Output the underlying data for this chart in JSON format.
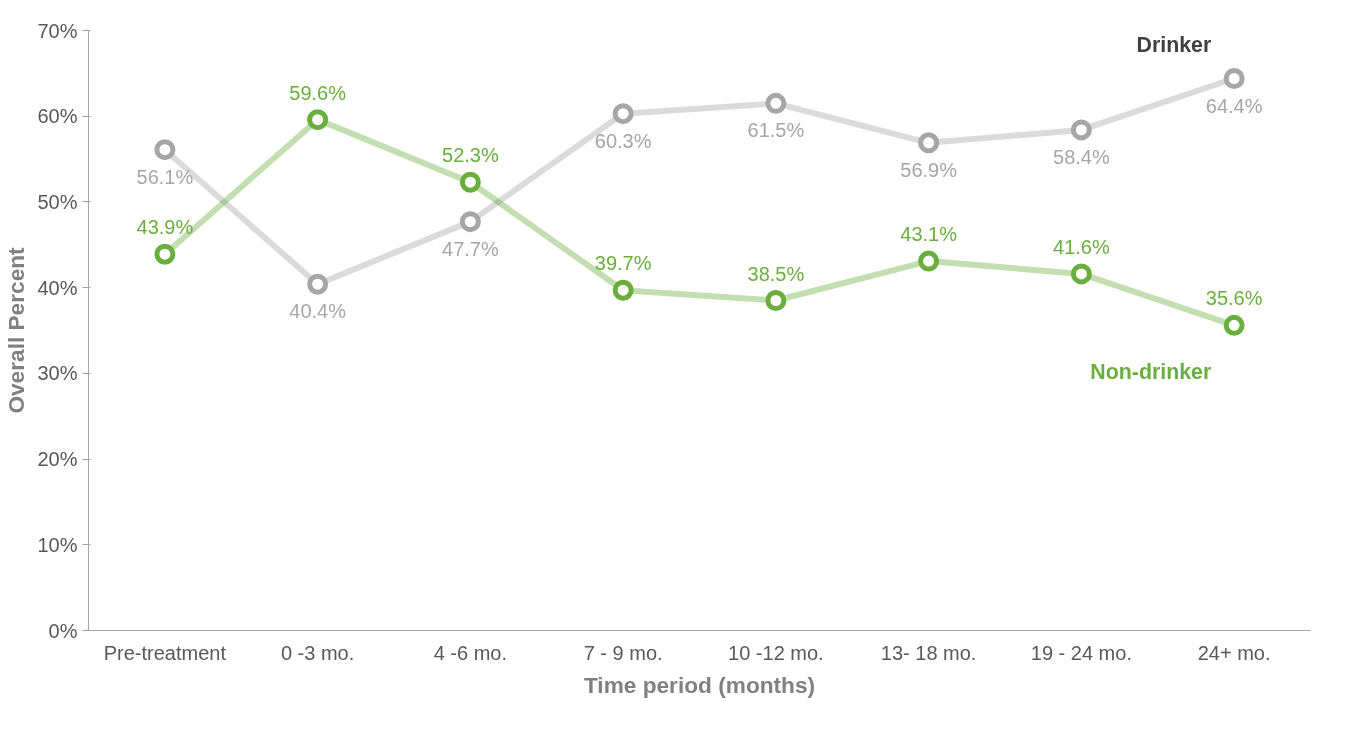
{
  "chart_data": {
    "type": "line",
    "xlabel": "Time period (months)",
    "ylabel": "Overall Percent",
    "categories": [
      "Pre-treatment",
      "0 -3 mo.",
      "4 -6 mo.",
      "7 - 9 mo.",
      "10 -12 mo.",
      "13- 18 mo.",
      "19 - 24 mo.",
      "24+ mo."
    ],
    "series": [
      {
        "name": "Drinker",
        "color": "#a6a6a6",
        "values": [
          56.1,
          40.4,
          47.7,
          60.3,
          61.5,
          56.9,
          58.4,
          64.4
        ],
        "value_labels": [
          "56.1%",
          "40.4%",
          "47.7%",
          "60.3%",
          "61.5%",
          "56.9%",
          "58.4%",
          "64.4%"
        ]
      },
      {
        "name": "Non-drinker",
        "color": "#6aaf3d",
        "values": [
          43.9,
          59.6,
          52.3,
          39.7,
          38.5,
          43.1,
          41.6,
          35.6
        ],
        "value_labels": [
          "43.9%",
          "59.6%",
          "52.3%",
          "39.7%",
          "38.5%",
          "43.1%",
          "41.6%",
          "35.6%"
        ]
      }
    ],
    "ylim": [
      0,
      70
    ],
    "yticks": [
      {
        "value": 0,
        "label": "0%"
      },
      {
        "value": 10,
        "label": "10%"
      },
      {
        "value": 20,
        "label": "20%"
      },
      {
        "value": 30,
        "label": "30%"
      },
      {
        "value": 40,
        "label": "40%"
      },
      {
        "value": 50,
        "label": "50%"
      },
      {
        "value": 60,
        "label": "60%"
      },
      {
        "value": 70,
        "label": "70%"
      }
    ],
    "marker": "circle",
    "line_style": "solid",
    "grid": false
  }
}
